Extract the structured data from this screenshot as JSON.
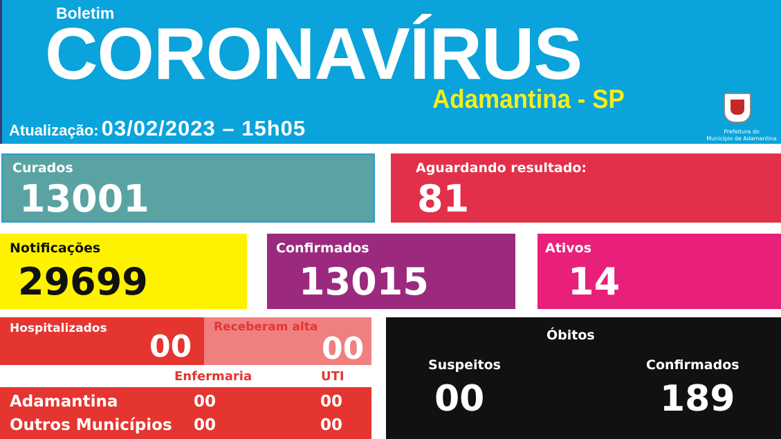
{
  "header": {
    "kicker": "Boletim",
    "title": "CORONAVÍRUS",
    "city": "Adamantina - SP",
    "update_label": "Atualização:",
    "update_value": "03/02/2023 – 15h05",
    "logo_text": [
      "Prefeitura do",
      "Município de Adamantina"
    ]
  },
  "cards": {
    "curados": {
      "label": "Curados",
      "value": "13001"
    },
    "aguardando": {
      "label": "Aguardando resultado:",
      "value": "81"
    },
    "notificacoes": {
      "label": "Notificações",
      "value": "29699"
    },
    "confirmados": {
      "label": "Confirmados",
      "value": "13015"
    },
    "ativos": {
      "label": "Ativos",
      "value": "14"
    }
  },
  "hospital": {
    "hospitalizados": {
      "label": "Hospitalizados",
      "value": "00"
    },
    "alta": {
      "label": "Receberam alta",
      "value": "00"
    },
    "columns": [
      "Enfermaria",
      "UTI"
    ],
    "rows": [
      {
        "name": "Adamantina",
        "enfermaria": "00",
        "uti": "00"
      },
      {
        "name": "Outros Municípios",
        "enfermaria": "00",
        "uti": "00"
      }
    ]
  },
  "obitos": {
    "title": "Óbitos",
    "suspeitos_label": "Suspeitos",
    "suspeitos": "00",
    "confirmados_label": "Confirmados",
    "confirmados": "189"
  },
  "colors": {
    "header": "#0aa3db",
    "curados": "#5aa3a3",
    "aguardando": "#e3304a",
    "notificacoes": "#fff200",
    "confirmados": "#9b2a7f",
    "ativos": "#e8207a",
    "hospital": "#e53530",
    "alta": "#f08080",
    "obitos": "#111111"
  }
}
